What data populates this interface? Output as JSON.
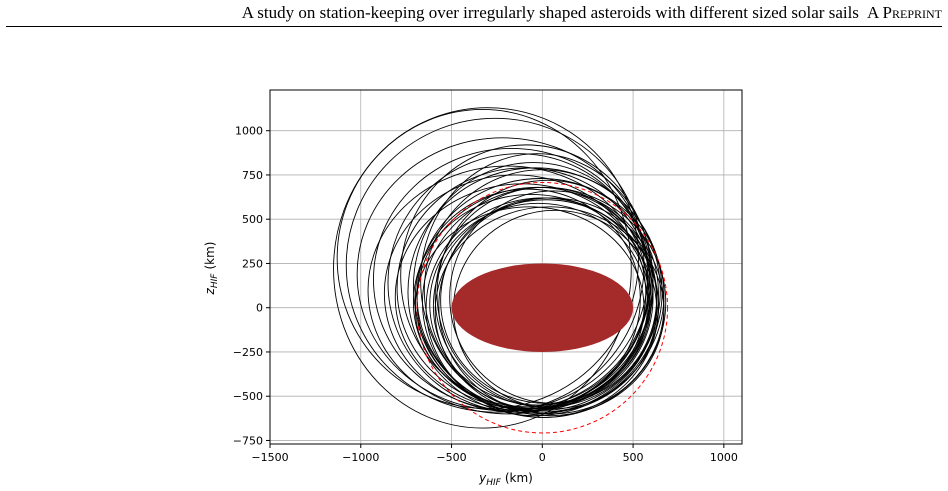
{
  "header": {
    "title": "A study on station-keeping over irregularly shaped asteroids with different sized solar sails",
    "badge": "A Preprint"
  },
  "chart_data": {
    "type": "line",
    "title": "",
    "xlabel_main": "y",
    "xlabel_sub": "HIF",
    "xlabel_unit": "(km)",
    "ylabel_main": "z",
    "ylabel_sub": "HIF",
    "ylabel_unit": "(km)",
    "xlim": [
      -1500,
      1100
    ],
    "ylim": [
      -770,
      1230
    ],
    "x_ticks": [
      -1500,
      -1000,
      -500,
      0,
      500,
      1000
    ],
    "y_ticks": [
      -750,
      -500,
      -250,
      0,
      250,
      500,
      750,
      1000
    ],
    "x_tick_labels": [
      "−1500",
      "−1000",
      "−500",
      "0",
      "500",
      "1000"
    ],
    "y_tick_labels": [
      "−750",
      "−500",
      "−250",
      "0",
      "250",
      "500",
      "750",
      "1000"
    ],
    "grid": true,
    "colors": {
      "trajectory": "#000000",
      "asteroid": "#a52a2a",
      "reference": "#ff0000"
    },
    "asteroid_body": {
      "shape": "ellipse",
      "center": [
        0,
        0
      ],
      "semi_axis_y": 500,
      "semi_axis_z": 250
    },
    "reference_circle": {
      "center": [
        0,
        0
      ],
      "radius": 690,
      "style": "dashed"
    },
    "trajectory_loops": [
      {
        "cy": 0,
        "cz": 0,
        "ry": 640,
        "rz": 620
      },
      {
        "cy": 20,
        "cz": 10,
        "ry": 620,
        "rz": 600
      },
      {
        "cy": -30,
        "cz": 40,
        "ry": 660,
        "rz": 640
      },
      {
        "cy": 10,
        "cz": 60,
        "ry": 600,
        "rz": 620
      },
      {
        "cy": -60,
        "cz": 30,
        "ry": 650,
        "rz": 610
      },
      {
        "cy": 40,
        "cz": -20,
        "ry": 630,
        "rz": 590
      },
      {
        "cy": -10,
        "cz": 70,
        "ry": 680,
        "rz": 660
      },
      {
        "cy": 30,
        "cz": 80,
        "ry": 610,
        "rz": 640
      },
      {
        "cy": -80,
        "cz": 50,
        "ry": 620,
        "rz": 620
      },
      {
        "cy": 0,
        "cz": 100,
        "ry": 650,
        "rz": 680
      },
      {
        "cy": -40,
        "cz": 90,
        "ry": 700,
        "rz": 700
      },
      {
        "cy": 20,
        "cz": 40,
        "ry": 580,
        "rz": 580
      },
      {
        "cy": -20,
        "cz": 20,
        "ry": 600,
        "rz": 570
      },
      {
        "cy": 50,
        "cz": 10,
        "ry": 620,
        "rz": 610
      },
      {
        "cy": -50,
        "cz": 120,
        "ry": 660,
        "rz": 700
      },
      {
        "cy": -100,
        "cz": 110,
        "ry": 700,
        "rz": 680
      },
      {
        "cy": -130,
        "cz": 140,
        "ry": 720,
        "rz": 730
      },
      {
        "cy": -170,
        "cz": 160,
        "ry": 760,
        "rz": 740
      },
      {
        "cy": -220,
        "cz": 190,
        "ry": 800,
        "rz": 770
      },
      {
        "cy": -190,
        "cz": 100,
        "ry": 770,
        "rz": 700
      },
      {
        "cy": -110,
        "cz": 60,
        "ry": 700,
        "rz": 640
      },
      {
        "cy": 60,
        "cz": 60,
        "ry": 570,
        "rz": 600
      },
      {
        "cy": 70,
        "cz": -10,
        "ry": 560,
        "rz": 560
      },
      {
        "cy": -70,
        "cz": 0,
        "ry": 630,
        "rz": 570
      },
      {
        "cy": -150,
        "cz": 80,
        "ry": 720,
        "rz": 670
      },
      {
        "cy": 10,
        "cz": 30,
        "ry": 670,
        "rz": 650
      },
      {
        "cy": -30,
        "cz": 150,
        "ry": 640,
        "rz": 720
      },
      {
        "cy": -90,
        "cz": 180,
        "ry": 690,
        "rz": 740
      },
      {
        "cy": -260,
        "cz": 240,
        "ry": 820,
        "rz": 830
      },
      {
        "cy": -300,
        "cz": 280,
        "ry": 830,
        "rz": 850
      },
      {
        "cy": -330,
        "cz": 220,
        "ry": 820,
        "rz": 900
      }
    ]
  }
}
